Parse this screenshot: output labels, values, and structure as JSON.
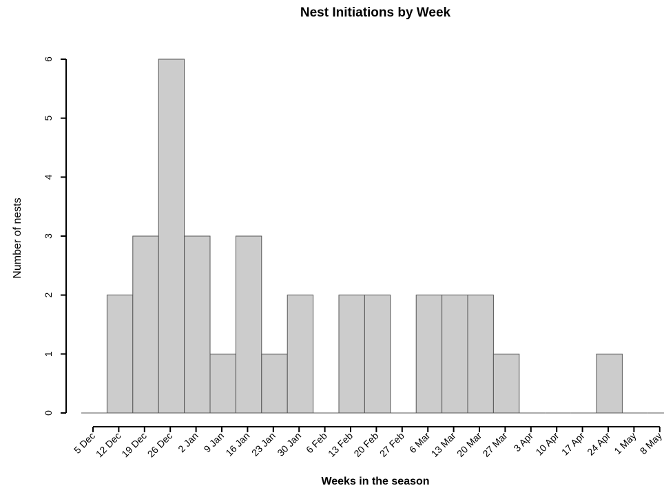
{
  "chart_data": {
    "type": "bar",
    "title": "Nest Initiations by Week",
    "xlabel": "Weeks in the season",
    "ylabel": "Number of nests",
    "categories": [
      "5 Dec",
      "12 Dec",
      "19 Dec",
      "26 Dec",
      "2 Jan",
      "9 Jan",
      "16 Jan",
      "23 Jan",
      "30 Jan",
      "6 Feb",
      "13 Feb",
      "20 Feb",
      "27 Feb",
      "6 Mar",
      "13 Mar",
      "20 Mar",
      "27 Mar",
      "3 Apr",
      "10 Apr",
      "17 Apr",
      "24 Apr",
      "1 May",
      "8 May"
    ],
    "values": [
      0,
      2,
      3,
      6,
      3,
      1,
      3,
      1,
      2,
      0,
      2,
      2,
      0,
      2,
      2,
      2,
      1,
      0,
      0,
      0,
      1,
      0,
      0
    ],
    "y_ticks": [
      "0",
      "1",
      "2",
      "3",
      "4",
      "5",
      "6"
    ],
    "ylim": [
      0,
      6
    ],
    "bar_color": "#cccccc",
    "edge_color": "#555555",
    "grid": false,
    "legend": "none"
  }
}
